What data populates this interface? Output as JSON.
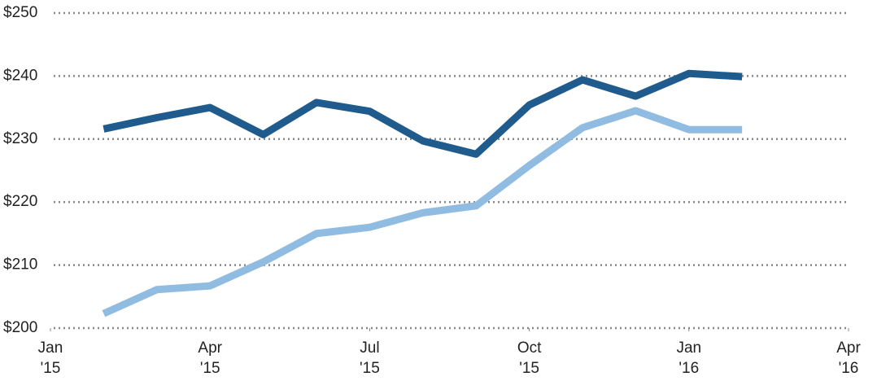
{
  "chart_data": {
    "type": "line",
    "x": [
      "2015-02",
      "2015-03",
      "2015-04",
      "2015-05",
      "2015-06",
      "2015-07",
      "2015-08",
      "2015-09",
      "2015-10",
      "2015-11",
      "2015-12",
      "2016-01",
      "2016-02"
    ],
    "series": [
      {
        "color": "#1f5b8c",
        "values": [
          231.6,
          233.4,
          235.0,
          230.7,
          235.8,
          234.4,
          229.7,
          227.6,
          235.4,
          239.4,
          236.8,
          240.4,
          239.9
        ]
      },
      {
        "color": "#90bce2",
        "values": [
          202.3,
          206.1,
          206.7,
          210.5,
          215.0,
          216.0,
          218.3,
          219.4,
          225.8,
          231.8,
          234.5,
          231.5,
          231.5
        ]
      }
    ],
    "xlim": [
      "2015-01",
      "2016-04"
    ],
    "xticks": [
      {
        "value": "2015-01",
        "label": [
          "Jan",
          "'15"
        ]
      },
      {
        "value": "2015-04",
        "label": [
          "Apr",
          "'15"
        ]
      },
      {
        "value": "2015-07",
        "label": [
          "Jul",
          "'15"
        ]
      },
      {
        "value": "2015-10",
        "label": [
          "Oct",
          "'15"
        ]
      },
      {
        "value": "2016-01",
        "label": [
          "Jan",
          "'16"
        ]
      },
      {
        "value": "2016-04",
        "label": [
          "Apr",
          "'16"
        ]
      }
    ],
    "ylim": [
      200,
      250
    ],
    "yticks": [
      {
        "value": 200,
        "label": "$200"
      },
      {
        "value": 210,
        "label": "$210"
      },
      {
        "value": 220,
        "label": "$220"
      },
      {
        "value": 230,
        "label": "$230"
      },
      {
        "value": 240,
        "label": "$240"
      },
      {
        "value": 250,
        "label": "$250"
      }
    ],
    "grid": true
  }
}
